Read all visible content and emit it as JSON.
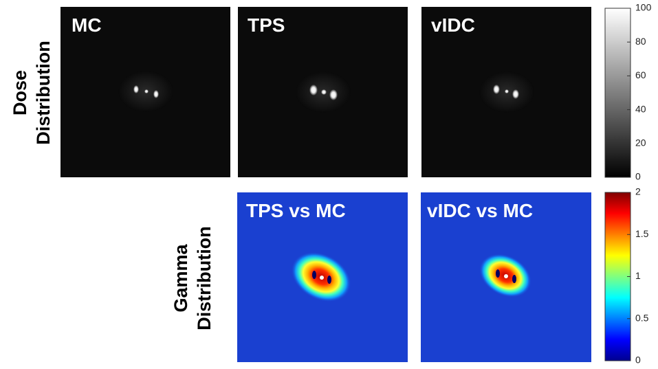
{
  "rows": [
    {
      "label": [
        "Dose",
        "Distribution"
      ],
      "panels": [
        {
          "label": "MC"
        },
        {
          "label": "TPS"
        },
        {
          "label": "vIDC"
        }
      ],
      "colorbar": {
        "lim": [
          0,
          100
        ],
        "ticks": [
          0,
          20,
          40,
          60,
          80,
          100
        ]
      }
    },
    {
      "label": [
        "Gamma",
        "Distribution"
      ],
      "panels": [
        {
          "label": "TPS vs MC"
        },
        {
          "label": "vIDC vs MC"
        }
      ],
      "colorbar": {
        "lim": [
          0,
          2
        ],
        "ticks": [
          0,
          0.5,
          1,
          1.5,
          2
        ]
      }
    }
  ]
}
